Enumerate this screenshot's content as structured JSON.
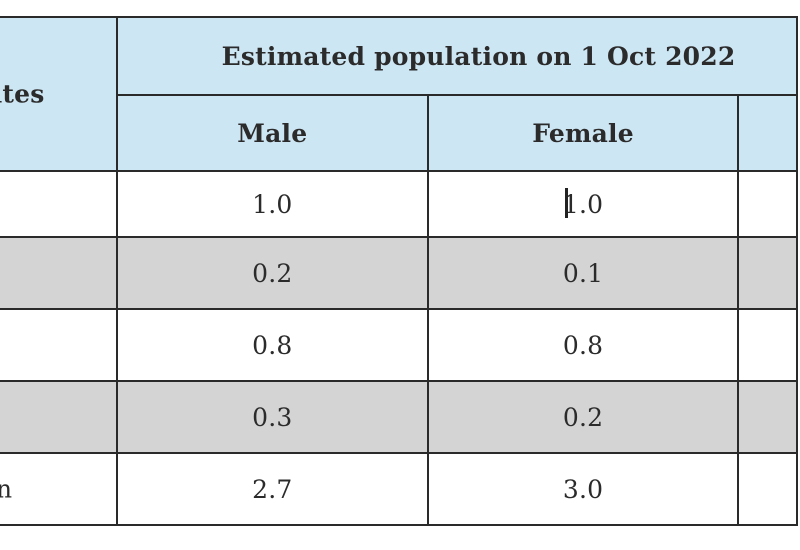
{
  "table": {
    "corner_header": "ates",
    "title": "Estimated population on 1 Oct 2022",
    "columns": [
      "Male",
      "Female",
      ""
    ],
    "rows": [
      {
        "label": "",
        "male": "1.0",
        "female": "1.0",
        "extra": "",
        "shaded": false
      },
      {
        "label": "",
        "male": "0.2",
        "female": "0.1",
        "extra": "",
        "shaded": true
      },
      {
        "label": "",
        "male": "0.8",
        "female": "0.8",
        "extra": "",
        "shaded": false
      },
      {
        "label": "",
        "male": "0.3",
        "female": "0.2",
        "extra": "",
        "shaded": true
      },
      {
        "label": "n",
        "male": "2.7",
        "female": "3.0",
        "extra": "",
        "shaded": false
      }
    ]
  }
}
